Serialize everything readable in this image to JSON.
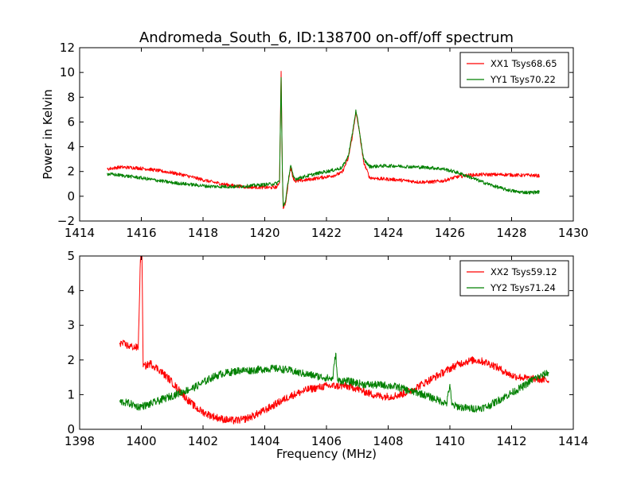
{
  "figure": {
    "title": "Andromeda_South_6, ID:138700 on-off/off spectrum",
    "xlabel": "Frequency (MHz)",
    "ylabel": "Power in Kelvin"
  },
  "chart_data": [
    {
      "type": "line",
      "title": "Andromeda_South_6, ID:138700 on-off/off spectrum",
      "xlabel": "",
      "ylabel": "Power in Kelvin",
      "xlim": [
        1414,
        1430
      ],
      "ylim": [
        -2,
        12
      ],
      "xticks": [
        "1414",
        "1416",
        "1418",
        "1420",
        "1422",
        "1424",
        "1426",
        "1428",
        "1430"
      ],
      "yticks": [
        "−2",
        "0",
        "2",
        "4",
        "6",
        "8",
        "10",
        "12"
      ],
      "legend_position": "top-right",
      "series": [
        {
          "name": "XX1 Tsys68.65",
          "color": "#ff0000",
          "points": [
            [
              1414.9,
              2.2
            ],
            [
              1415.3,
              2.35
            ],
            [
              1415.8,
              2.3
            ],
            [
              1416.2,
              2.2
            ],
            [
              1416.6,
              2.05
            ],
            [
              1417.0,
              1.9
            ],
            [
              1417.4,
              1.7
            ],
            [
              1417.8,
              1.45
            ],
            [
              1418.2,
              1.2
            ],
            [
              1418.6,
              1.0
            ],
            [
              1419.0,
              0.85
            ],
            [
              1419.4,
              0.75
            ],
            [
              1419.8,
              0.72
            ],
            [
              1420.2,
              0.7
            ],
            [
              1420.4,
              0.75
            ],
            [
              1420.48,
              1.2
            ],
            [
              1420.53,
              10.1
            ],
            [
              1420.57,
              2.0
            ],
            [
              1420.6,
              -1.0
            ],
            [
              1420.68,
              -0.5
            ],
            [
              1420.78,
              1.5
            ],
            [
              1420.84,
              2.3
            ],
            [
              1420.92,
              1.5
            ],
            [
              1421.0,
              1.2
            ],
            [
              1421.3,
              1.3
            ],
            [
              1421.8,
              1.5
            ],
            [
              1422.2,
              1.65
            ],
            [
              1422.5,
              1.9
            ],
            [
              1422.7,
              3.0
            ],
            [
              1422.85,
              5.0
            ],
            [
              1422.95,
              6.8
            ],
            [
              1423.05,
              5.5
            ],
            [
              1423.2,
              2.8
            ],
            [
              1423.4,
              1.5
            ],
            [
              1423.8,
              1.4
            ],
            [
              1424.2,
              1.35
            ],
            [
              1424.6,
              1.25
            ],
            [
              1425.0,
              1.15
            ],
            [
              1425.4,
              1.15
            ],
            [
              1425.8,
              1.25
            ],
            [
              1426.2,
              1.55
            ],
            [
              1426.6,
              1.7
            ],
            [
              1427.0,
              1.75
            ],
            [
              1427.4,
              1.75
            ],
            [
              1427.8,
              1.75
            ],
            [
              1428.2,
              1.7
            ],
            [
              1428.6,
              1.7
            ],
            [
              1428.9,
              1.65
            ]
          ]
        },
        {
          "name": "YY1 Tsys70.22",
          "color": "#008000",
          "points": [
            [
              1414.9,
              1.8
            ],
            [
              1415.3,
              1.7
            ],
            [
              1415.8,
              1.55
            ],
            [
              1416.2,
              1.4
            ],
            [
              1416.6,
              1.25
            ],
            [
              1417.0,
              1.1
            ],
            [
              1417.4,
              1.0
            ],
            [
              1417.8,
              0.9
            ],
            [
              1418.2,
              0.8
            ],
            [
              1418.6,
              0.78
            ],
            [
              1419.0,
              0.78
            ],
            [
              1419.4,
              0.82
            ],
            [
              1419.8,
              0.9
            ],
            [
              1420.2,
              0.98
            ],
            [
              1420.4,
              1.05
            ],
            [
              1420.48,
              1.3
            ],
            [
              1420.53,
              9.6
            ],
            [
              1420.57,
              2.0
            ],
            [
              1420.6,
              -0.8
            ],
            [
              1420.68,
              -0.3
            ],
            [
              1420.78,
              1.6
            ],
            [
              1420.84,
              2.5
            ],
            [
              1420.92,
              1.6
            ],
            [
              1421.0,
              1.4
            ],
            [
              1421.3,
              1.6
            ],
            [
              1421.8,
              1.9
            ],
            [
              1422.2,
              2.1
            ],
            [
              1422.5,
              2.3
            ],
            [
              1422.7,
              3.2
            ],
            [
              1422.85,
              5.2
            ],
            [
              1422.95,
              6.9
            ],
            [
              1423.05,
              5.6
            ],
            [
              1423.2,
              3.0
            ],
            [
              1423.4,
              2.4
            ],
            [
              1423.8,
              2.45
            ],
            [
              1424.2,
              2.45
            ],
            [
              1424.6,
              2.4
            ],
            [
              1425.0,
              2.35
            ],
            [
              1425.4,
              2.3
            ],
            [
              1425.8,
              2.2
            ],
            [
              1426.2,
              1.95
            ],
            [
              1426.6,
              1.6
            ],
            [
              1427.0,
              1.2
            ],
            [
              1427.4,
              0.85
            ],
            [
              1427.8,
              0.55
            ],
            [
              1428.2,
              0.35
            ],
            [
              1428.6,
              0.3
            ],
            [
              1428.9,
              0.35
            ]
          ]
        }
      ]
    },
    {
      "type": "line",
      "title": "",
      "xlabel": "Frequency (MHz)",
      "ylabel": "",
      "xlim": [
        1398,
        1414
      ],
      "ylim": [
        0,
        5
      ],
      "xticks": [
        "1398",
        "1400",
        "1402",
        "1404",
        "1406",
        "1408",
        "1410",
        "1412",
        "1414"
      ],
      "yticks": [
        "0",
        "1",
        "2",
        "3",
        "4",
        "5"
      ],
      "legend_position": "top-right",
      "series": [
        {
          "name": "XX2 Tsys59.12",
          "color": "#ff0000",
          "points": [
            [
              1399.3,
              2.5
            ],
            [
              1399.6,
              2.4
            ],
            [
              1399.9,
              2.35
            ],
            [
              1399.97,
              4.9
            ],
            [
              1400.02,
              5.0
            ],
            [
              1400.06,
              1.8
            ],
            [
              1400.3,
              1.9
            ],
            [
              1400.6,
              1.7
            ],
            [
              1400.9,
              1.45
            ],
            [
              1401.2,
              1.15
            ],
            [
              1401.5,
              0.85
            ],
            [
              1401.8,
              0.6
            ],
            [
              1402.1,
              0.45
            ],
            [
              1402.4,
              0.35
            ],
            [
              1402.7,
              0.28
            ],
            [
              1403.0,
              0.25
            ],
            [
              1403.3,
              0.28
            ],
            [
              1403.6,
              0.38
            ],
            [
              1403.9,
              0.5
            ],
            [
              1404.2,
              0.65
            ],
            [
              1404.5,
              0.8
            ],
            [
              1404.8,
              0.95
            ],
            [
              1405.1,
              1.05
            ],
            [
              1405.4,
              1.15
            ],
            [
              1405.7,
              1.2
            ],
            [
              1406.0,
              1.25
            ],
            [
              1406.3,
              1.25
            ],
            [
              1406.6,
              1.25
            ],
            [
              1406.9,
              1.2
            ],
            [
              1407.2,
              1.1
            ],
            [
              1407.5,
              1.0
            ],
            [
              1407.8,
              0.95
            ],
            [
              1408.1,
              0.95
            ],
            [
              1408.4,
              1.0
            ],
            [
              1408.7,
              1.1
            ],
            [
              1409.0,
              1.25
            ],
            [
              1409.3,
              1.4
            ],
            [
              1409.6,
              1.55
            ],
            [
              1409.9,
              1.7
            ],
            [
              1410.2,
              1.85
            ],
            [
              1410.5,
              1.95
            ],
            [
              1410.8,
              2.0
            ],
            [
              1411.1,
              1.95
            ],
            [
              1411.4,
              1.85
            ],
            [
              1411.7,
              1.7
            ],
            [
              1412.0,
              1.55
            ],
            [
              1412.3,
              1.5
            ],
            [
              1412.6,
              1.45
            ],
            [
              1412.9,
              1.45
            ],
            [
              1413.2,
              1.4
            ]
          ]
        },
        {
          "name": "YY2 Tsys71.24",
          "color": "#008000",
          "points": [
            [
              1399.3,
              0.8
            ],
            [
              1399.6,
              0.75
            ],
            [
              1399.9,
              0.65
            ],
            [
              1400.2,
              0.7
            ],
            [
              1400.5,
              0.8
            ],
            [
              1400.8,
              0.9
            ],
            [
              1401.1,
              1.0
            ],
            [
              1401.4,
              1.1
            ],
            [
              1401.7,
              1.2
            ],
            [
              1402.0,
              1.35
            ],
            [
              1402.3,
              1.5
            ],
            [
              1402.6,
              1.6
            ],
            [
              1402.9,
              1.65
            ],
            [
              1403.2,
              1.7
            ],
            [
              1403.5,
              1.7
            ],
            [
              1403.8,
              1.72
            ],
            [
              1404.1,
              1.75
            ],
            [
              1404.4,
              1.75
            ],
            [
              1404.7,
              1.72
            ],
            [
              1405.0,
              1.65
            ],
            [
              1405.3,
              1.6
            ],
            [
              1405.6,
              1.55
            ],
            [
              1405.9,
              1.5
            ],
            [
              1406.2,
              1.45
            ],
            [
              1406.3,
              2.2
            ],
            [
              1406.36,
              1.4
            ],
            [
              1406.6,
              1.4
            ],
            [
              1406.9,
              1.35
            ],
            [
              1407.2,
              1.3
            ],
            [
              1407.5,
              1.28
            ],
            [
              1407.8,
              1.28
            ],
            [
              1408.1,
              1.25
            ],
            [
              1408.4,
              1.2
            ],
            [
              1408.7,
              1.1
            ],
            [
              1409.0,
              1.05
            ],
            [
              1409.3,
              0.95
            ],
            [
              1409.6,
              0.85
            ],
            [
              1409.9,
              0.75
            ],
            [
              1410.0,
              1.3
            ],
            [
              1410.06,
              0.7
            ],
            [
              1410.3,
              0.65
            ],
            [
              1410.6,
              0.6
            ],
            [
              1410.9,
              0.6
            ],
            [
              1411.2,
              0.65
            ],
            [
              1411.5,
              0.8
            ],
            [
              1411.8,
              0.95
            ],
            [
              1412.1,
              1.1
            ],
            [
              1412.4,
              1.25
            ],
            [
              1412.7,
              1.45
            ],
            [
              1413.0,
              1.55
            ],
            [
              1413.2,
              1.65
            ]
          ]
        }
      ]
    }
  ]
}
